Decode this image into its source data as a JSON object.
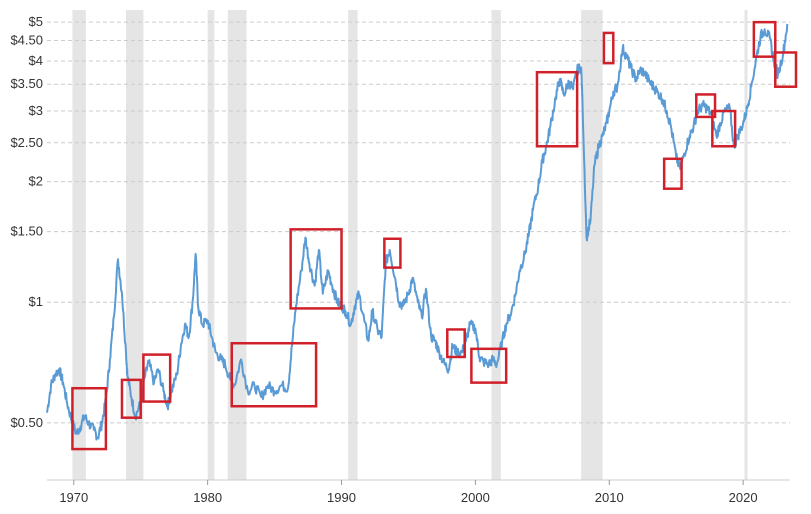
{
  "chart_data": {
    "type": "line",
    "x_scale": "time",
    "y_scale": "log",
    "xlim": [
      1968,
      2023.5
    ],
    "ylim": [
      0.36,
      5.3
    ],
    "grid": true,
    "y_ticks": [
      {
        "value": 5,
        "label": "$5"
      },
      {
        "value": 4.5,
        "label": "$4.50"
      },
      {
        "value": 4,
        "label": "$4"
      },
      {
        "value": 3.5,
        "label": "$3.50"
      },
      {
        "value": 3,
        "label": "$3"
      },
      {
        "value": 2.5,
        "label": "$2.50"
      },
      {
        "value": 2,
        "label": "$2"
      },
      {
        "value": 1.5,
        "label": "$1.50"
      },
      {
        "value": 1,
        "label": "$1"
      },
      {
        "value": 0.5,
        "label": "$0.50"
      }
    ],
    "x_ticks": [
      {
        "value": 1970,
        "label": "1970"
      },
      {
        "value": 1980,
        "label": "1980"
      },
      {
        "value": 1990,
        "label": "1990"
      },
      {
        "value": 2000,
        "label": "2000"
      },
      {
        "value": 2010,
        "label": "2010"
      },
      {
        "value": 2020,
        "label": "2020"
      }
    ],
    "recessions": [
      [
        1969.9,
        1970.9
      ],
      [
        1973.9,
        1975.2
      ],
      [
        1980.0,
        1980.5
      ],
      [
        1981.5,
        1982.9
      ],
      [
        1990.5,
        1991.2
      ],
      [
        2001.2,
        2001.9
      ],
      [
        2007.9,
        2009.5
      ],
      [
        2020.1,
        2020.3
      ]
    ],
    "series": [
      {
        "color": "#5b9bd5",
        "x": [
          1968.0,
          1968.3,
          1968.6,
          1968.9,
          1969.2,
          1969.5,
          1969.9,
          1970.2,
          1970.5,
          1970.8,
          1971.1,
          1971.5,
          1971.8,
          1972.1,
          1972.4,
          1972.7,
          1973.0,
          1973.3,
          1973.6,
          1973.9,
          1974.0,
          1974.3,
          1974.6,
          1975.0,
          1975.3,
          1975.6,
          1976.0,
          1976.3,
          1976.7,
          1977.0,
          1977.3,
          1977.7,
          1978.0,
          1978.3,
          1978.6,
          1978.9,
          1979.1,
          1979.3,
          1979.6,
          1980.0,
          1980.3,
          1980.6,
          1981.0,
          1981.3,
          1981.7,
          1982.0,
          1982.5,
          1983.0,
          1983.5,
          1984.0,
          1984.5,
          1985.0,
          1985.5,
          1986.0,
          1986.3,
          1986.6,
          1987.0,
          1987.3,
          1987.6,
          1988.0,
          1988.3,
          1988.6,
          1989.0,
          1989.3,
          1989.7,
          1990.0,
          1990.3,
          1990.7,
          1991.0,
          1991.3,
          1991.7,
          1992.0,
          1992.3,
          1992.7,
          1993.0,
          1993.3,
          1993.6,
          1994.0,
          1994.3,
          1994.6,
          1995.0,
          1995.3,
          1995.7,
          1996.0,
          1996.3,
          1996.7,
          1997.0,
          1997.3,
          1997.7,
          1998.0,
          1998.3,
          1998.6,
          1999.0,
          1999.3,
          1999.6,
          2000.0,
          2000.3,
          2000.6,
          2001.0,
          2001.3,
          2001.6,
          2002.0,
          2002.3,
          2002.7,
          2003.0,
          2003.3,
          2003.7,
          2004.0,
          2004.3,
          2004.7,
          2005.0,
          2005.3,
          2005.6,
          2006.0,
          2006.3,
          2006.6,
          2007.0,
          2007.3,
          2007.6,
          2007.9,
          2008.0,
          2008.3,
          2008.6,
          2008.9,
          2009.2,
          2009.5,
          2009.8,
          2010.0,
          2010.3,
          2010.6,
          2011.0,
          2011.3,
          2011.6,
          2012.0,
          2012.3,
          2012.6,
          2013.0,
          2013.3,
          2013.6,
          2014.0,
          2014.3,
          2014.6,
          2015.0,
          2015.3,
          2015.6,
          2016.0,
          2016.3,
          2016.6,
          2017.0,
          2017.3,
          2017.6,
          2018.0,
          2018.3,
          2018.6,
          2019.0,
          2019.3,
          2019.6,
          2020.0,
          2020.3,
          2020.6,
          2021.0,
          2021.3,
          2021.6,
          2022.0,
          2022.3,
          2022.6,
          2023.0,
          2023.3
        ],
        "y": [
          0.53,
          0.62,
          0.66,
          0.68,
          0.63,
          0.56,
          0.5,
          0.47,
          0.49,
          0.52,
          0.5,
          0.48,
          0.46,
          0.5,
          0.57,
          0.72,
          0.92,
          1.28,
          1.05,
          0.75,
          0.66,
          0.58,
          0.52,
          0.56,
          0.65,
          0.71,
          0.63,
          0.68,
          0.6,
          0.55,
          0.6,
          0.66,
          0.78,
          0.88,
          0.82,
          1.02,
          1.32,
          0.97,
          0.88,
          0.9,
          0.82,
          0.75,
          0.72,
          0.7,
          0.64,
          0.62,
          0.72,
          0.6,
          0.62,
          0.58,
          0.62,
          0.6,
          0.62,
          0.61,
          0.78,
          0.98,
          1.2,
          1.45,
          1.25,
          1.1,
          1.35,
          1.05,
          1.2,
          1.1,
          1.0,
          0.98,
          0.95,
          0.88,
          0.98,
          1.05,
          0.9,
          0.8,
          0.95,
          0.85,
          0.82,
          1.25,
          1.35,
          1.15,
          1.0,
          0.98,
          1.05,
          1.15,
          1.0,
          0.92,
          1.08,
          0.82,
          0.8,
          0.75,
          0.7,
          0.68,
          0.78,
          0.75,
          0.75,
          0.8,
          0.88,
          0.86,
          0.73,
          0.71,
          0.7,
          0.72,
          0.7,
          0.8,
          0.88,
          0.95,
          1.05,
          1.2,
          1.32,
          1.48,
          1.7,
          1.95,
          2.25,
          2.45,
          2.75,
          3.25,
          3.6,
          3.3,
          3.55,
          3.4,
          3.8,
          3.85,
          3.15,
          1.45,
          1.6,
          2.2,
          2.45,
          2.6,
          2.8,
          3.0,
          3.35,
          3.45,
          4.3,
          4.1,
          3.85,
          3.6,
          3.8,
          3.75,
          3.55,
          3.45,
          3.35,
          3.2,
          3.0,
          2.75,
          2.3,
          2.15,
          2.35,
          2.6,
          2.75,
          3.0,
          3.1,
          3.05,
          2.95,
          2.6,
          2.8,
          3.0,
          3.05,
          2.45,
          2.6,
          2.8,
          3.05,
          3.45,
          4.1,
          4.6,
          4.8,
          4.55,
          4.0,
          3.7,
          4.2,
          4.95
        ]
      }
    ],
    "annotation_boxes": [
      {
        "x0": 1969.9,
        "x1": 1972.4,
        "y0": 0.43,
        "y1": 0.61
      },
      {
        "x0": 1973.6,
        "x1": 1975.0,
        "y0": 0.515,
        "y1": 0.64
      },
      {
        "x0": 1975.2,
        "x1": 1977.2,
        "y0": 0.565,
        "y1": 0.74
      },
      {
        "x0": 1981.8,
        "x1": 1988.1,
        "y0": 0.55,
        "y1": 0.79
      },
      {
        "x0": 1986.2,
        "x1": 1990.0,
        "y0": 0.965,
        "y1": 1.52
      },
      {
        "x0": 1993.2,
        "x1": 1994.4,
        "y0": 1.22,
        "y1": 1.44
      },
      {
        "x0": 1997.9,
        "x1": 1999.2,
        "y0": 0.73,
        "y1": 0.855
      },
      {
        "x0": 1999.7,
        "x1": 2002.3,
        "y0": 0.63,
        "y1": 0.765
      },
      {
        "x0": 2004.6,
        "x1": 2007.6,
        "y0": 2.45,
        "y1": 3.75
      },
      {
        "x0": 2009.6,
        "x1": 2010.3,
        "y0": 3.95,
        "y1": 4.7
      },
      {
        "x0": 2014.1,
        "x1": 2015.4,
        "y0": 1.92,
        "y1": 2.28
      },
      {
        "x0": 2016.5,
        "x1": 2017.9,
        "y0": 2.9,
        "y1": 3.3
      },
      {
        "x0": 2017.7,
        "x1": 2019.4,
        "y0": 2.45,
        "y1": 3.0
      },
      {
        "x0": 2020.8,
        "x1": 2022.4,
        "y0": 4.1,
        "y1": 5.0
      },
      {
        "x0": 2022.4,
        "x1": 2024.0,
        "y0": 3.45,
        "y1": 4.2
      }
    ]
  }
}
